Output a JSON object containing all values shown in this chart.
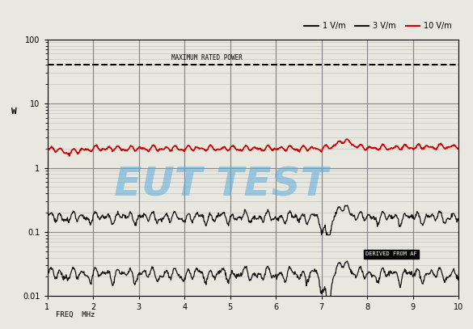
{
  "xlabel": "FREQ  MHz",
  "ylabel": "W",
  "xlim": [
    1,
    10
  ],
  "ylim": [
    0.01,
    100
  ],
  "max_power_level": 40,
  "max_power_label": "MAXIMUM RATED POWER",
  "eut_test_label": "EUT TEST",
  "derived_label": "DERIVED FROM AF",
  "legend_entries": [
    "1 V/m",
    "3 V/m",
    "10 V/m"
  ],
  "legend_colors": [
    "#111111",
    "#111111",
    "#cc0000"
  ],
  "bg_color": "#e8e8e0",
  "grid_major_color": "#888888",
  "grid_minor_color": "#bbbbbb",
  "red_line_base": 2.0,
  "black_line1_base": 0.17,
  "black_line2_base": 0.022,
  "figsize": [
    5.85,
    4.07
  ],
  "dpi": 100
}
